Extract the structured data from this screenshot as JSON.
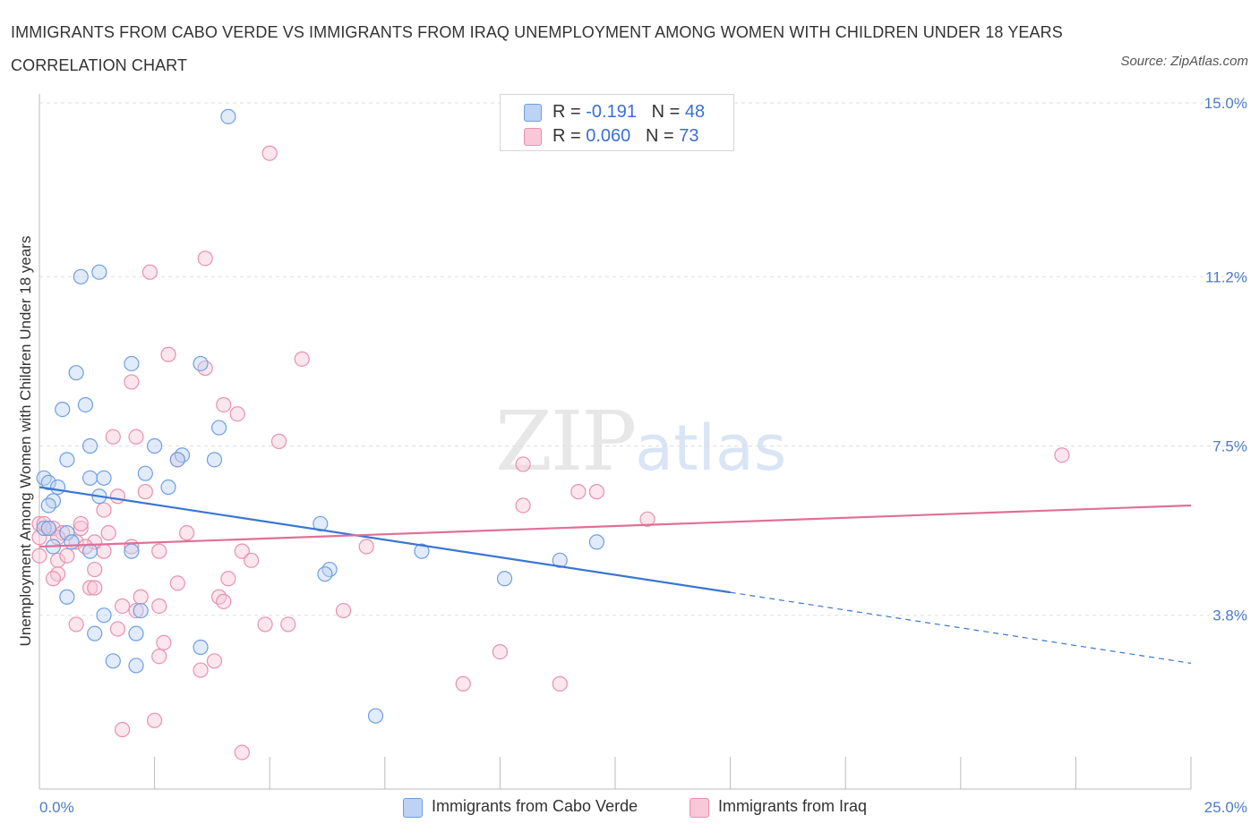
{
  "title": "IMMIGRANTS FROM CABO VERDE VS IMMIGRANTS FROM IRAQ UNEMPLOYMENT AMONG WOMEN WITH CHILDREN UNDER 18 YEARS CORRELATION CHART",
  "source": "Source: ZipAtlas.com",
  "watermark": {
    "zip": "ZIP",
    "atlas": "atlas"
  },
  "legend_top": {
    "rows": [
      {
        "r_label": "R = ",
        "r_value": "-0.191",
        "n_label": "N = ",
        "n_value": "48"
      },
      {
        "r_label": "R = ",
        "r_value": "0.060",
        "n_label": "N = ",
        "n_value": "73"
      }
    ]
  },
  "colors": {
    "blue": "#6e9fe0",
    "blue_fill": "#bcd3f5",
    "blue_line": "#3a76d0",
    "pink": "#e890ac",
    "pink_fill": "#f8c8d8",
    "pink_line": "#e07098",
    "grid": "#dddddd",
    "axis_text": "#4a7cc7"
  },
  "chart_data": {
    "type": "scatter",
    "title": "IMMIGRANTS FROM CABO VERDE VS IMMIGRANTS FROM IRAQ UNEMPLOYMENT AMONG WOMEN WITH CHILDREN UNDER 18 YEARS CORRELATION CHART",
    "xlabel": "",
    "ylabel": "Unemployment Among Women with Children Under 18 years",
    "xlim": [
      0,
      25
    ],
    "ylim": [
      0,
      15
    ],
    "x_tick_labels": [
      "0.0%",
      "25.0%"
    ],
    "y_ticks": [
      3.8,
      7.5,
      11.2,
      15.0
    ],
    "y_tick_labels": [
      "3.8%",
      "7.5%",
      "11.2%",
      "15.0%"
    ],
    "legend": [
      "Immigrants from Cabo Verde",
      "Immigrants from Iraq"
    ],
    "series": [
      {
        "name": "Immigrants from Cabo Verde",
        "color_key": "blue",
        "R": -0.191,
        "N": 48,
        "trend": {
          "x0": 0,
          "y0": 6.6,
          "x1": 15,
          "y1": 4.3,
          "dash_to_x": 25,
          "dash_to_y": 2.75
        },
        "points": [
          [
            4.1,
            14.7
          ],
          [
            0.9,
            11.2
          ],
          [
            1.3,
            11.3
          ],
          [
            2.0,
            9.3
          ],
          [
            3.5,
            9.3
          ],
          [
            0.8,
            9.1
          ],
          [
            1.0,
            8.4
          ],
          [
            0.5,
            8.3
          ],
          [
            3.9,
            7.9
          ],
          [
            2.5,
            7.5
          ],
          [
            1.1,
            7.5
          ],
          [
            3.1,
            7.3
          ],
          [
            0.6,
            7.2
          ],
          [
            3.0,
            7.2
          ],
          [
            3.8,
            7.2
          ],
          [
            2.3,
            6.9
          ],
          [
            0.1,
            6.8
          ],
          [
            1.1,
            6.8
          ],
          [
            1.4,
            6.8
          ],
          [
            0.2,
            6.7
          ],
          [
            0.4,
            6.6
          ],
          [
            2.8,
            6.6
          ],
          [
            1.3,
            6.4
          ],
          [
            0.3,
            6.3
          ],
          [
            0.2,
            6.2
          ],
          [
            0.1,
            5.7
          ],
          [
            0.2,
            5.7
          ],
          [
            6.1,
            5.8
          ],
          [
            0.6,
            5.6
          ],
          [
            0.7,
            5.4
          ],
          [
            12.1,
            5.4
          ],
          [
            0.3,
            5.3
          ],
          [
            2.0,
            5.2
          ],
          [
            1.1,
            5.2
          ],
          [
            8.3,
            5.2
          ],
          [
            11.3,
            5.0
          ],
          [
            6.3,
            4.8
          ],
          [
            6.2,
            4.7
          ],
          [
            10.1,
            4.6
          ],
          [
            0.6,
            4.2
          ],
          [
            2.2,
            3.9
          ],
          [
            1.4,
            3.8
          ],
          [
            1.2,
            3.4
          ],
          [
            2.1,
            3.4
          ],
          [
            3.5,
            3.1
          ],
          [
            1.6,
            2.8
          ],
          [
            2.1,
            2.7
          ],
          [
            7.3,
            1.6
          ]
        ]
      },
      {
        "name": "Immigrants from Iraq",
        "color_key": "pink",
        "R": 0.06,
        "N": 73,
        "trend": {
          "x0": 0,
          "y0": 5.3,
          "x1": 25,
          "y1": 6.2
        },
        "points": [
          [
            5.0,
            13.9
          ],
          [
            3.6,
            11.6
          ],
          [
            2.4,
            11.3
          ],
          [
            2.8,
            9.5
          ],
          [
            5.7,
            9.4
          ],
          [
            3.6,
            9.2
          ],
          [
            2.0,
            8.9
          ],
          [
            4.0,
            8.4
          ],
          [
            4.3,
            8.2
          ],
          [
            2.1,
            7.7
          ],
          [
            1.6,
            7.7
          ],
          [
            5.2,
            7.6
          ],
          [
            22.2,
            7.3
          ],
          [
            3.0,
            7.2
          ],
          [
            10.5,
            7.1
          ],
          [
            2.3,
            6.5
          ],
          [
            11.7,
            6.5
          ],
          [
            12.1,
            6.5
          ],
          [
            1.7,
            6.4
          ],
          [
            10.5,
            6.2
          ],
          [
            1.4,
            6.1
          ],
          [
            13.2,
            5.9
          ],
          [
            0.0,
            5.8
          ],
          [
            0.1,
            5.8
          ],
          [
            0.2,
            5.7
          ],
          [
            0.3,
            5.7
          ],
          [
            0.9,
            5.7
          ],
          [
            0.5,
            5.6
          ],
          [
            3.2,
            5.6
          ],
          [
            1.5,
            5.6
          ],
          [
            0.0,
            5.5
          ],
          [
            0.4,
            5.5
          ],
          [
            1.2,
            5.4
          ],
          [
            0.8,
            5.4
          ],
          [
            2.0,
            5.3
          ],
          [
            7.1,
            5.3
          ],
          [
            1.4,
            5.2
          ],
          [
            2.6,
            5.2
          ],
          [
            4.4,
            5.2
          ],
          [
            0.0,
            5.1
          ],
          [
            4.6,
            5.0
          ],
          [
            0.4,
            5.0
          ],
          [
            1.2,
            4.8
          ],
          [
            0.4,
            4.7
          ],
          [
            0.3,
            4.6
          ],
          [
            4.1,
            4.6
          ],
          [
            3.0,
            4.5
          ],
          [
            1.1,
            4.4
          ],
          [
            1.2,
            4.4
          ],
          [
            2.2,
            4.2
          ],
          [
            3.9,
            4.2
          ],
          [
            4.0,
            4.1
          ],
          [
            1.8,
            4.0
          ],
          [
            2.6,
            4.0
          ],
          [
            2.1,
            3.9
          ],
          [
            6.6,
            3.9
          ],
          [
            0.8,
            3.6
          ],
          [
            4.9,
            3.6
          ],
          [
            5.4,
            3.6
          ],
          [
            1.7,
            3.5
          ],
          [
            2.7,
            3.2
          ],
          [
            10.0,
            3.0
          ],
          [
            2.6,
            2.9
          ],
          [
            3.8,
            2.8
          ],
          [
            3.5,
            2.6
          ],
          [
            9.2,
            2.3
          ],
          [
            11.3,
            2.3
          ],
          [
            2.5,
            1.5
          ],
          [
            1.8,
            1.3
          ],
          [
            4.4,
            0.8
          ],
          [
            0.9,
            5.8
          ],
          [
            1.0,
            5.3
          ],
          [
            0.6,
            5.1
          ]
        ]
      }
    ]
  }
}
